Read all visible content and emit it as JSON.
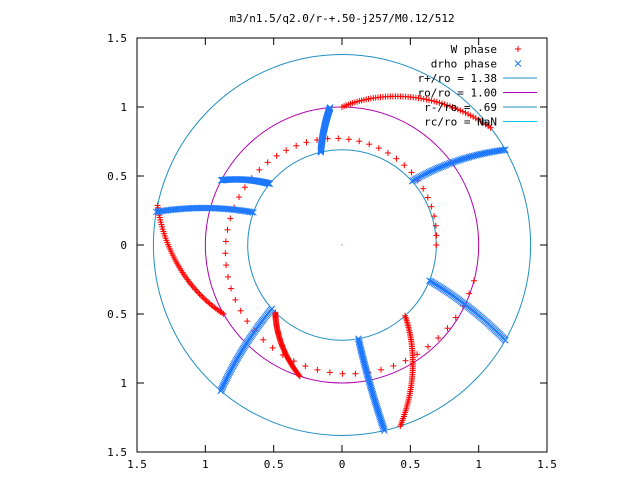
{
  "chart_data": {
    "type": "scatter",
    "title": "m3/n1.5/q2.0/r-+.50-j257/M0.12/512",
    "xlabel": "",
    "ylabel": "",
    "xlim": [
      -1.5,
      1.5
    ],
    "ylim": [
      -1.5,
      1.5
    ],
    "x_ticks": [
      {
        "v": -1.5,
        "label": "1.5"
      },
      {
        "v": -1,
        "label": "1"
      },
      {
        "v": -0.5,
        "label": "0.5"
      },
      {
        "v": 0,
        "label": "0"
      },
      {
        "v": 0.5,
        "label": "0.5"
      },
      {
        "v": 1,
        "label": "1"
      },
      {
        "v": 1.5,
        "label": "1.5"
      }
    ],
    "y_ticks": [
      {
        "v": -1.5,
        "label": "1.5"
      },
      {
        "v": -1,
        "label": "1"
      },
      {
        "v": -0.5,
        "label": "0.5"
      },
      {
        "v": 0,
        "label": "0"
      },
      {
        "v": 0.5,
        "label": "0.5"
      },
      {
        "v": 1,
        "label": "1"
      },
      {
        "v": 1.5,
        "label": "1.5"
      }
    ],
    "grid": false,
    "legend_position": "top-right",
    "circles": [
      {
        "name": "r+/ro = 1.38",
        "radius": 1.38,
        "color": "#1f8fc0"
      },
      {
        "name": "ro/ro = 1.00",
        "radius": 1.0,
        "color": "#b000b0"
      },
      {
        "name": "r-/ro = .69",
        "radius": 0.69,
        "color": "#1f8fc0"
      },
      {
        "name": "rc/ro = NaN",
        "radius": null,
        "color": "#00c8e0"
      }
    ],
    "series": [
      {
        "name": "W phase",
        "marker": "plus",
        "color": "#ff0000",
        "arms": [
          {
            "r0": 1.0,
            "r1": 1.38,
            "theta0": 90,
            "theta1": 38
          },
          {
            "r0": 1.0,
            "r1": 1.38,
            "theta0": 210,
            "theta1": 168
          },
          {
            "r0": 0.69,
            "r1": 1.38,
            "theta0": 312,
            "theta1": 288
          },
          {
            "r0": 0.69,
            "r1": 1.0,
            "theta0": 225,
            "theta1": 252
          },
          {
            "r0": 0.69,
            "r1": 1.0,
            "theta0": 0,
            "theta1": 345
          }
        ]
      },
      {
        "name": "drho phase",
        "marker": "x",
        "color": "#1e78ff",
        "arms": [
          {
            "r0": 0.69,
            "r1": 1.0,
            "theta0": 103,
            "theta1": 95
          },
          {
            "r0": 0.69,
            "r1": 1.0,
            "theta0": 140,
            "theta1": 152
          },
          {
            "r0": 0.69,
            "r1": 1.38,
            "theta0": 42,
            "theta1": 30
          },
          {
            "r0": 0.69,
            "r1": 1.38,
            "theta0": 160,
            "theta1": 170
          },
          {
            "r0": 0.69,
            "r1": 1.38,
            "theta0": 338,
            "theta1": 330
          },
          {
            "r0": 0.69,
            "r1": 1.38,
            "theta0": 222,
            "theta1": 230
          },
          {
            "r0": 0.69,
            "r1": 1.38,
            "theta0": 280,
            "theta1": 283
          }
        ]
      }
    ]
  }
}
